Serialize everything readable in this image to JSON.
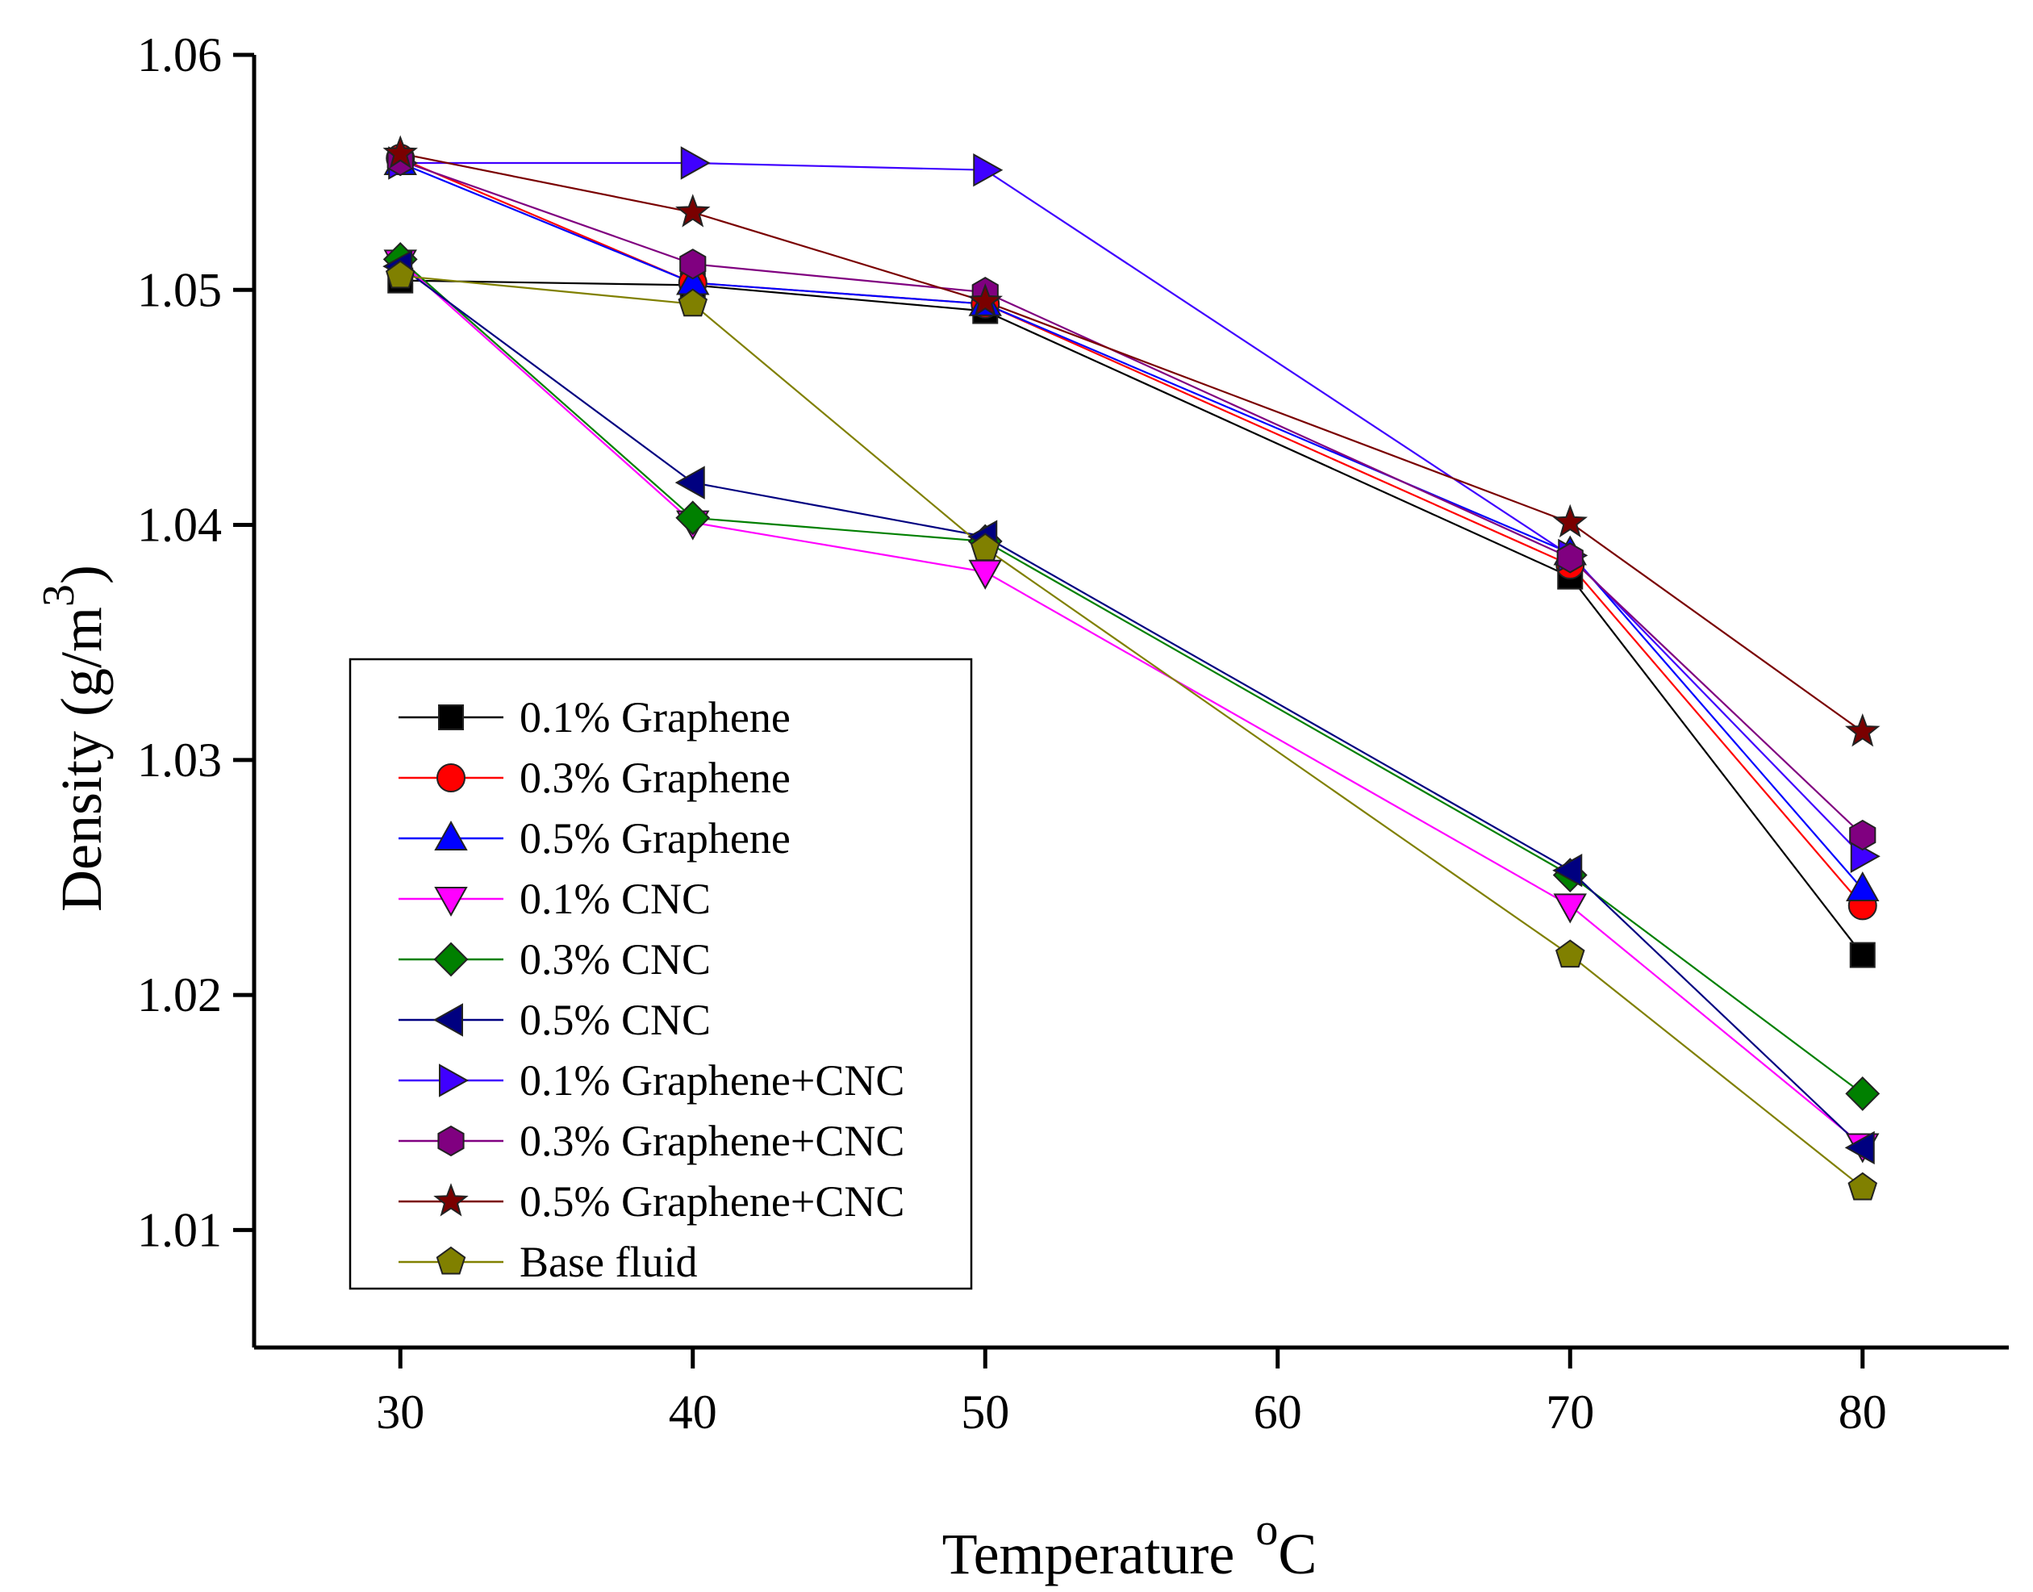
{
  "chart_data": {
    "type": "line",
    "title": "",
    "xlabel": "Temperature",
    "xlabel_unit": "C",
    "xlabel_unit_sup": "o",
    "ylabel": "Density (g/m",
    "ylabel_sup": "3",
    "ylabel_close": ")",
    "xlim": [
      25,
      85
    ],
    "ylim": [
      1.005,
      1.06
    ],
    "xticks": [
      30,
      40,
      50,
      60,
      70,
      80
    ],
    "xtick_labels": [
      "30",
      "40",
      "50",
      "60",
      "70",
      "80"
    ],
    "yticks": [
      1.01,
      1.02,
      1.03,
      1.04,
      1.05,
      1.06
    ],
    "ytick_labels": [
      "1.01",
      "1.02",
      "1.03",
      "1.04",
      "1.05",
      "1.06"
    ],
    "grid": false,
    "legend_position": "lower-left",
    "x": [
      30,
      40,
      50,
      70,
      80
    ],
    "series": [
      {
        "name": "0.1% Graphene",
        "marker": "square",
        "color": "#000000",
        "values": [
          1.0504,
          1.0502,
          1.0491,
          1.0378,
          1.0217
        ]
      },
      {
        "name": "0.3% Graphene",
        "marker": "circle",
        "color": "#ff0000",
        "values": [
          1.0556,
          1.0503,
          1.0494,
          1.0383,
          1.0238
        ]
      },
      {
        "name": "0.5% Graphene",
        "marker": "triangle-up",
        "color": "#0000ff",
        "values": [
          1.0554,
          1.0503,
          1.0494,
          1.0388,
          1.0245
        ]
      },
      {
        "name": "0.1% CNC",
        "marker": "triangle-down",
        "color": "#ff00ff",
        "values": [
          1.0512,
          1.0401,
          1.038,
          1.0238,
          1.0136
        ]
      },
      {
        "name": "0.3% CNC",
        "marker": "diamond",
        "color": "#008000",
        "values": [
          1.0513,
          1.0403,
          1.0393,
          1.0251,
          1.0158
        ]
      },
      {
        "name": "0.5% CNC",
        "marker": "triangle-left",
        "color": "#000080",
        "values": [
          1.051,
          1.0418,
          1.0395,
          1.0253,
          1.0135
        ]
      },
      {
        "name": "0.1% Graphene+CNC",
        "marker": "triangle-right",
        "color": "#3f00ff",
        "values": [
          1.0554,
          1.0554,
          1.0551,
          1.0387,
          1.0259
        ]
      },
      {
        "name": "0.3% Graphene+CNC",
        "marker": "hexagon",
        "color": "#800080",
        "values": [
          1.0555,
          1.0511,
          1.0499,
          1.0386,
          1.0268
        ]
      },
      {
        "name": "0.5% Graphene+CNC",
        "marker": "star",
        "color": "#7a0000",
        "values": [
          1.0558,
          1.0533,
          1.0495,
          1.0401,
          1.0312
        ]
      },
      {
        "name": "Base fluid",
        "marker": "pentagon",
        "color": "#808000",
        "values": [
          1.0506,
          1.0494,
          1.039,
          1.0217,
          1.0118
        ]
      }
    ]
  }
}
